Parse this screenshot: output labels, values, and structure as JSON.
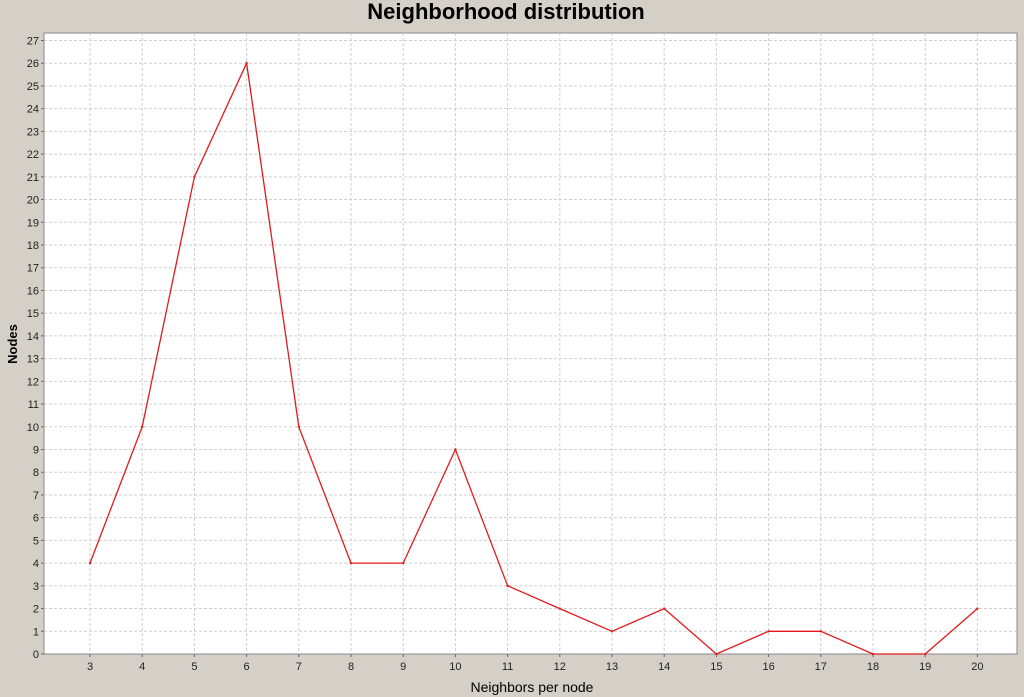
{
  "chart_data": {
    "type": "line",
    "title": "Neighborhood distribution",
    "xlabel": "Neighbors per node",
    "ylabel": "Nodes",
    "categories": [
      "3",
      "4",
      "5",
      "6",
      "7",
      "8",
      "9",
      "10",
      "11",
      "12",
      "13",
      "14",
      "15",
      "16",
      "17",
      "18",
      "19",
      "20"
    ],
    "series": [
      {
        "values": [
          4,
          10,
          21,
          26,
          10,
          4,
          4,
          9,
          3,
          2,
          1,
          2,
          0,
          1,
          1,
          0,
          0,
          2
        ]
      }
    ],
    "ylim": [
      0,
      27
    ],
    "yticks": [
      "0",
      "1",
      "2",
      "3",
      "4",
      "5",
      "6",
      "7",
      "8",
      "9",
      "10",
      "11",
      "12",
      "13",
      "14",
      "15",
      "16",
      "17",
      "18",
      "19",
      "20",
      "21",
      "22",
      "23",
      "24",
      "25",
      "26",
      "27"
    ],
    "grid": true,
    "line_color": "#e31a1c",
    "background": "#d4d0c8",
    "plot_background": "#ffffff"
  }
}
